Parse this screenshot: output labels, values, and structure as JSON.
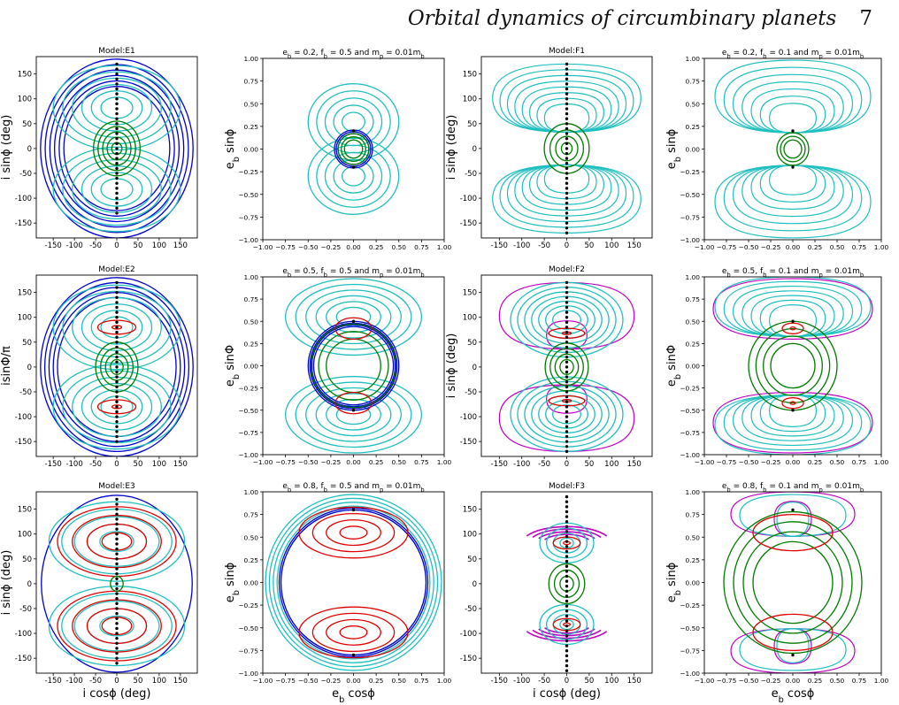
{
  "header": {
    "title": "Orbital dynamics of circumbinary planets",
    "page": "7"
  },
  "colors": {
    "blue": "#0000cc",
    "cyan": "#1fbfbf",
    "green": "#007a00",
    "red": "#e00000",
    "magenta": "#c000c0",
    "dot": "#000000"
  },
  "chart_data": [
    {
      "id": "E1",
      "type": "line",
      "title": "Model:E1",
      "xlabel": "",
      "ylabel": "i sinϕ (deg)",
      "xlim": [
        -190,
        190
      ],
      "ylim": [
        -180,
        185
      ],
      "xticks": [
        -150,
        -100,
        -50,
        0,
        50,
        100,
        150
      ],
      "yticks": [
        -150,
        -100,
        -50,
        0,
        50,
        100,
        150
      ],
      "grid": false,
      "families": [
        {
          "color": "blue",
          "shape": "circle",
          "count": 6,
          "rmin": 125,
          "rmax": 180
        },
        {
          "color": "cyan",
          "shape": "lobe",
          "count": 6,
          "yc": 82,
          "wmax": 150,
          "hmax": 85
        },
        {
          "color": "green",
          "shape": "circle",
          "count": 5,
          "rmin": 12,
          "rmax": 55
        }
      ],
      "dots": {
        "x": 0,
        "y_from": -130,
        "y_to": 170,
        "step": 10
      }
    },
    {
      "id": "E2",
      "type": "line",
      "title": "Model:E2",
      "xlabel": "",
      "ylabel": "isinΦ/π",
      "xlim": [
        -190,
        190
      ],
      "ylim": [
        -180,
        185
      ],
      "xticks": [
        -150,
        -100,
        -50,
        0,
        50,
        100,
        150
      ],
      "yticks": [
        -150,
        -100,
        -50,
        0,
        50,
        100,
        150
      ],
      "grid": false,
      "families": [
        {
          "color": "blue",
          "shape": "circle",
          "count": 5,
          "rmin": 140,
          "rmax": 180
        },
        {
          "color": "cyan",
          "shape": "lobe",
          "count": 6,
          "yc": 80,
          "wmax": 150,
          "hmax": 85
        },
        {
          "color": "red",
          "shape": "lobe",
          "count": 2,
          "yc": 80,
          "wmax": 45,
          "hmax": 14
        },
        {
          "color": "green",
          "shape": "circle",
          "count": 4,
          "rmin": 15,
          "rmax": 50
        }
      ],
      "dots": {
        "x": 0,
        "y_from": -150,
        "y_to": 170,
        "step": 10
      }
    },
    {
      "id": "E3",
      "type": "line",
      "title": "Model:E3",
      "xlabel": "i cosϕ (deg)",
      "ylabel": "i sinϕ (deg)",
      "xlim": [
        -190,
        190
      ],
      "ylim": [
        -180,
        185
      ],
      "xticks": [
        -150,
        -100,
        -50,
        0,
        50,
        100,
        150
      ],
      "yticks": [
        -150,
        -100,
        -50,
        0,
        50,
        100,
        150
      ],
      "grid": false,
      "families": [
        {
          "color": "blue",
          "shape": "circle",
          "count": 1,
          "rmin": 178,
          "rmax": 178
        },
        {
          "color": "cyan",
          "shape": "lobe",
          "count": 5,
          "yc": 85,
          "wmax": 160,
          "hmax": 80
        },
        {
          "color": "red",
          "shape": "lobe",
          "count": 4,
          "yc": 85,
          "wmax": 140,
          "hmax": 70
        },
        {
          "color": "green",
          "shape": "circle",
          "count": 1,
          "rmin": 15,
          "rmax": 15
        }
      ],
      "dots": {
        "x": 0,
        "y_from": -160,
        "y_to": 175,
        "step": 10
      }
    },
    {
      "id": "Eb02",
      "type": "line",
      "title": "e_b = 0.2, f_b = 0.5 and m_p = 0.01m_b",
      "xlabel": "",
      "ylabel": "e_b sinϕ",
      "xlim": [
        -1,
        1
      ],
      "ylim": [
        -1,
        1
      ],
      "xticks": [
        -1.0,
        -0.75,
        -0.5,
        -0.25,
        0.0,
        0.25,
        0.5,
        0.75,
        1.0
      ],
      "yticks": [
        -1.0,
        -0.75,
        -0.5,
        -0.25,
        0.0,
        0.25,
        0.5,
        0.75,
        1.0
      ],
      "grid": false,
      "families": [
        {
          "color": "cyan",
          "shape": "lobe",
          "count": 5,
          "yc": 0.3,
          "wmax": 0.5,
          "hmax": 0.42
        },
        {
          "color": "blue",
          "shape": "circle",
          "count": 3,
          "rmin": 0.17,
          "rmax": 0.21
        },
        {
          "color": "green",
          "shape": "circle",
          "count": 3,
          "rmin": 0.1,
          "rmax": 0.17
        }
      ],
      "dots": {
        "x": 0,
        "ys": [
          0.2,
          -0.2
        ]
      }
    },
    {
      "id": "Eb05",
      "type": "line",
      "title": "e_b = 0.5, f_b = 0.5 and m_p = 0.01m_b",
      "xlabel": "",
      "ylabel": "e_b sinΦ",
      "xlim": [
        -1,
        1
      ],
      "ylim": [
        -1,
        1
      ],
      "xticks": [
        -1.0,
        -0.75,
        -0.5,
        -0.25,
        0.0,
        0.25,
        0.5,
        0.75,
        1.0
      ],
      "yticks": [
        -1.0,
        -0.75,
        -0.5,
        -0.25,
        0.0,
        0.25,
        0.5,
        0.75,
        1.0
      ],
      "grid": false,
      "families": [
        {
          "color": "cyan",
          "shape": "lobe",
          "count": 6,
          "yc": 0.55,
          "wmax": 0.75,
          "hmax": 0.43
        },
        {
          "color": "blue",
          "shape": "circle",
          "count": 4,
          "rmin": 0.44,
          "rmax": 0.5
        },
        {
          "color": "green",
          "shape": "circle",
          "count": 3,
          "rmin": 0.3,
          "rmax": 0.47
        },
        {
          "color": "red",
          "shape": "lobe",
          "count": 1,
          "yc": 0.42,
          "wmax": 0.2,
          "hmax": 0.12
        }
      ],
      "dots": {
        "x": 0,
        "ys": [
          0.5,
          -0.5
        ]
      }
    },
    {
      "id": "Eb08",
      "type": "line",
      "title": "e_b = 0.8, f_b = 0.5 and m_p = 0.01m_b",
      "xlabel": "e_b cosϕ",
      "ylabel": "e_b sinϕ",
      "xlim": [
        -1,
        1
      ],
      "ylim": [
        -1,
        1
      ],
      "xticks": [
        -1.0,
        -0.75,
        -0.5,
        -0.25,
        0.0,
        0.25,
        0.5,
        0.75,
        1.0
      ],
      "yticks": [
        -1.0,
        -0.75,
        -0.5,
        -0.25,
        0.0,
        0.25,
        0.5,
        0.75,
        1.0
      ],
      "grid": false,
      "families": [
        {
          "color": "cyan",
          "shape": "circle",
          "count": 5,
          "rmin": 0.8,
          "rmax": 0.97
        },
        {
          "color": "blue",
          "shape": "circle",
          "count": 2,
          "rmin": 0.8,
          "rmax": 0.82
        },
        {
          "color": "red",
          "shape": "lobe",
          "count": 4,
          "yc": 0.55,
          "wmax": 0.6,
          "hmax": 0.28
        }
      ],
      "dots": {
        "x": 0,
        "ys": [
          0.8,
          -0.8
        ]
      }
    },
    {
      "id": "F1",
      "type": "line",
      "title": "Model:F1",
      "xlabel": "",
      "ylabel": "i sinϕ (deg)",
      "xlim": [
        -190,
        190
      ],
      "ylim": [
        -180,
        185
      ],
      "xticks": [
        -150,
        -100,
        -50,
        0,
        50,
        100,
        150
      ],
      "yticks": [
        -150,
        -100,
        -50,
        0,
        50,
        100,
        150
      ],
      "grid": false,
      "families": [
        {
          "color": "cyan",
          "shape": "fan",
          "count": 8,
          "yc": 55,
          "wmax": 165,
          "hmax": 115
        },
        {
          "color": "green",
          "shape": "circle",
          "count": 4,
          "rmin": 12,
          "rmax": 50
        }
      ],
      "dots": {
        "x": 0,
        "y_from": -170,
        "y_to": 170,
        "step": 10
      }
    },
    {
      "id": "F2",
      "type": "line",
      "title": "Model:F2",
      "xlabel": "",
      "ylabel": "i sinϕ (deg)",
      "xlim": [
        -190,
        190
      ],
      "ylim": [
        -180,
        185
      ],
      "xticks": [
        -150,
        -100,
        -50,
        0,
        50,
        100,
        150
      ],
      "yticks": [
        -150,
        -100,
        -50,
        0,
        50,
        100,
        150
      ],
      "grid": false,
      "families": [
        {
          "color": "magenta",
          "shape": "fan",
          "count": 2,
          "yc": 60,
          "wmax": 150,
          "hmax": 110
        },
        {
          "color": "cyan",
          "shape": "lobe",
          "count": 7,
          "yc": 95,
          "wmax": 125,
          "hmax": 75
        },
        {
          "color": "red",
          "shape": "lobe",
          "count": 2,
          "yc": 68,
          "wmax": 40,
          "hmax": 10
        },
        {
          "color": "green",
          "shape": "circle",
          "count": 4,
          "rmin": 15,
          "rmax": 48
        }
      ],
      "dots": {
        "x": 0,
        "y_from": -170,
        "y_to": 170,
        "step": 10
      }
    },
    {
      "id": "F3",
      "type": "line",
      "title": "Model:F3",
      "xlabel": "i cosϕ (deg)",
      "ylabel": "",
      "xlim": [
        -190,
        190
      ],
      "ylim": [
        -180,
        185
      ],
      "xticks": [
        -150,
        -100,
        -50,
        0,
        50,
        100,
        150
      ],
      "yticks": [
        -150,
        -100,
        -50,
        0,
        50,
        100,
        150
      ],
      "grid": false,
      "families": [
        {
          "color": "magenta",
          "shape": "arc",
          "count": 4,
          "yc": 80,
          "rmin": 55,
          "rmax": 100
        },
        {
          "color": "cyan",
          "shape": "lobe",
          "count": 4,
          "yc": 82,
          "wmax": 60,
          "hmax": 40
        },
        {
          "color": "red",
          "shape": "lobe",
          "count": 2,
          "yc": 82,
          "wmax": 30,
          "hmax": 12
        },
        {
          "color": "green",
          "shape": "circle",
          "count": 3,
          "rmin": 15,
          "rmax": 40
        }
      ],
      "dots": {
        "x": 0,
        "y_from": -175,
        "y_to": 175,
        "step": 10
      }
    },
    {
      "id": "Fb02",
      "type": "line",
      "title": "e_b = 0.2, f_b = 0.1 and m_p = 0.01m_b",
      "xlabel": "",
      "ylabel": "e_b sinϕ",
      "xlim": [
        -1,
        1
      ],
      "ylim": [
        -1,
        1
      ],
      "xticks": [
        -1.0,
        -0.75,
        -0.5,
        -0.25,
        0.0,
        0.25,
        0.5,
        0.75,
        1.0
      ],
      "yticks": [
        -1.0,
        -0.75,
        -0.5,
        -0.25,
        0.0,
        0.25,
        0.5,
        0.75,
        1.0
      ],
      "grid": false,
      "families": [
        {
          "color": "cyan",
          "shape": "fan",
          "count": 7,
          "yc": 0.3,
          "wmax": 0.88,
          "hmax": 0.68
        },
        {
          "color": "green",
          "shape": "circle",
          "count": 3,
          "rmin": 0.1,
          "rmax": 0.18
        }
      ],
      "dots": {
        "x": 0,
        "ys": [
          0.2,
          -0.2
        ]
      }
    },
    {
      "id": "Fb05",
      "type": "line",
      "title": "e_b = 0.5, f_b = 0.1 and m_p = 0.01m_b",
      "xlabel": "",
      "ylabel": "e_b sinΦ",
      "xlim": [
        -1,
        1
      ],
      "ylim": [
        -1,
        1
      ],
      "xticks": [
        -1.0,
        -0.75,
        -0.5,
        -0.25,
        0.0,
        0.25,
        0.5,
        0.75,
        1.0
      ],
      "yticks": [
        -1.0,
        -0.75,
        -0.5,
        -0.25,
        0.0,
        0.25,
        0.5,
        0.75,
        1.0
      ],
      "grid": false,
      "families": [
        {
          "color": "magenta",
          "shape": "fan",
          "count": 1,
          "yc": 0.5,
          "wmax": 0.9,
          "hmax": 0.48
        },
        {
          "color": "cyan",
          "shape": "fan",
          "count": 7,
          "yc": 0.55,
          "wmax": 0.88,
          "hmax": 0.45
        },
        {
          "color": "green",
          "shape": "circle",
          "count": 4,
          "rmin": 0.25,
          "rmax": 0.5
        },
        {
          "color": "red",
          "shape": "lobe",
          "count": 2,
          "yc": 0.42,
          "wmax": 0.12,
          "hmax": 0.06
        }
      ],
      "dots": {
        "x": 0,
        "ys": [
          0.5,
          -0.5
        ]
      }
    },
    {
      "id": "Fb08",
      "type": "line",
      "title": "e_b = 0.8, f_b = 0.1 and m_p = 0.01m_b",
      "xlabel": "e_b cosϕ",
      "ylabel": "e_b sinϕ",
      "xlim": [
        -1,
        1
      ],
      "ylim": [
        -1,
        1
      ],
      "xticks": [
        -1.0,
        -0.75,
        -0.5,
        -0.25,
        0.0,
        0.25,
        0.5,
        0.75,
        1.0
      ],
      "yticks": [
        -1.0,
        -0.75,
        -0.5,
        -0.25,
        0.0,
        0.25,
        0.5,
        0.75,
        1.0
      ],
      "grid": false,
      "families": [
        {
          "color": "magenta",
          "shape": "fan",
          "count": 2,
          "yc": 0.85,
          "wmax": 0.7,
          "hmax": 0.15
        },
        {
          "color": "cyan",
          "shape": "fan",
          "count": 2,
          "yc": 0.85,
          "wmax": 0.6,
          "hmax": 0.12
        },
        {
          "color": "green",
          "shape": "circle",
          "count": 4,
          "rmin": 0.45,
          "rmax": 0.78
        },
        {
          "color": "red",
          "shape": "lobe",
          "count": 1,
          "yc": 0.55,
          "wmax": 0.45,
          "hmax": 0.2
        }
      ],
      "dots": {
        "x": 0,
        "ys": [
          0.8,
          -0.8
        ]
      }
    }
  ]
}
